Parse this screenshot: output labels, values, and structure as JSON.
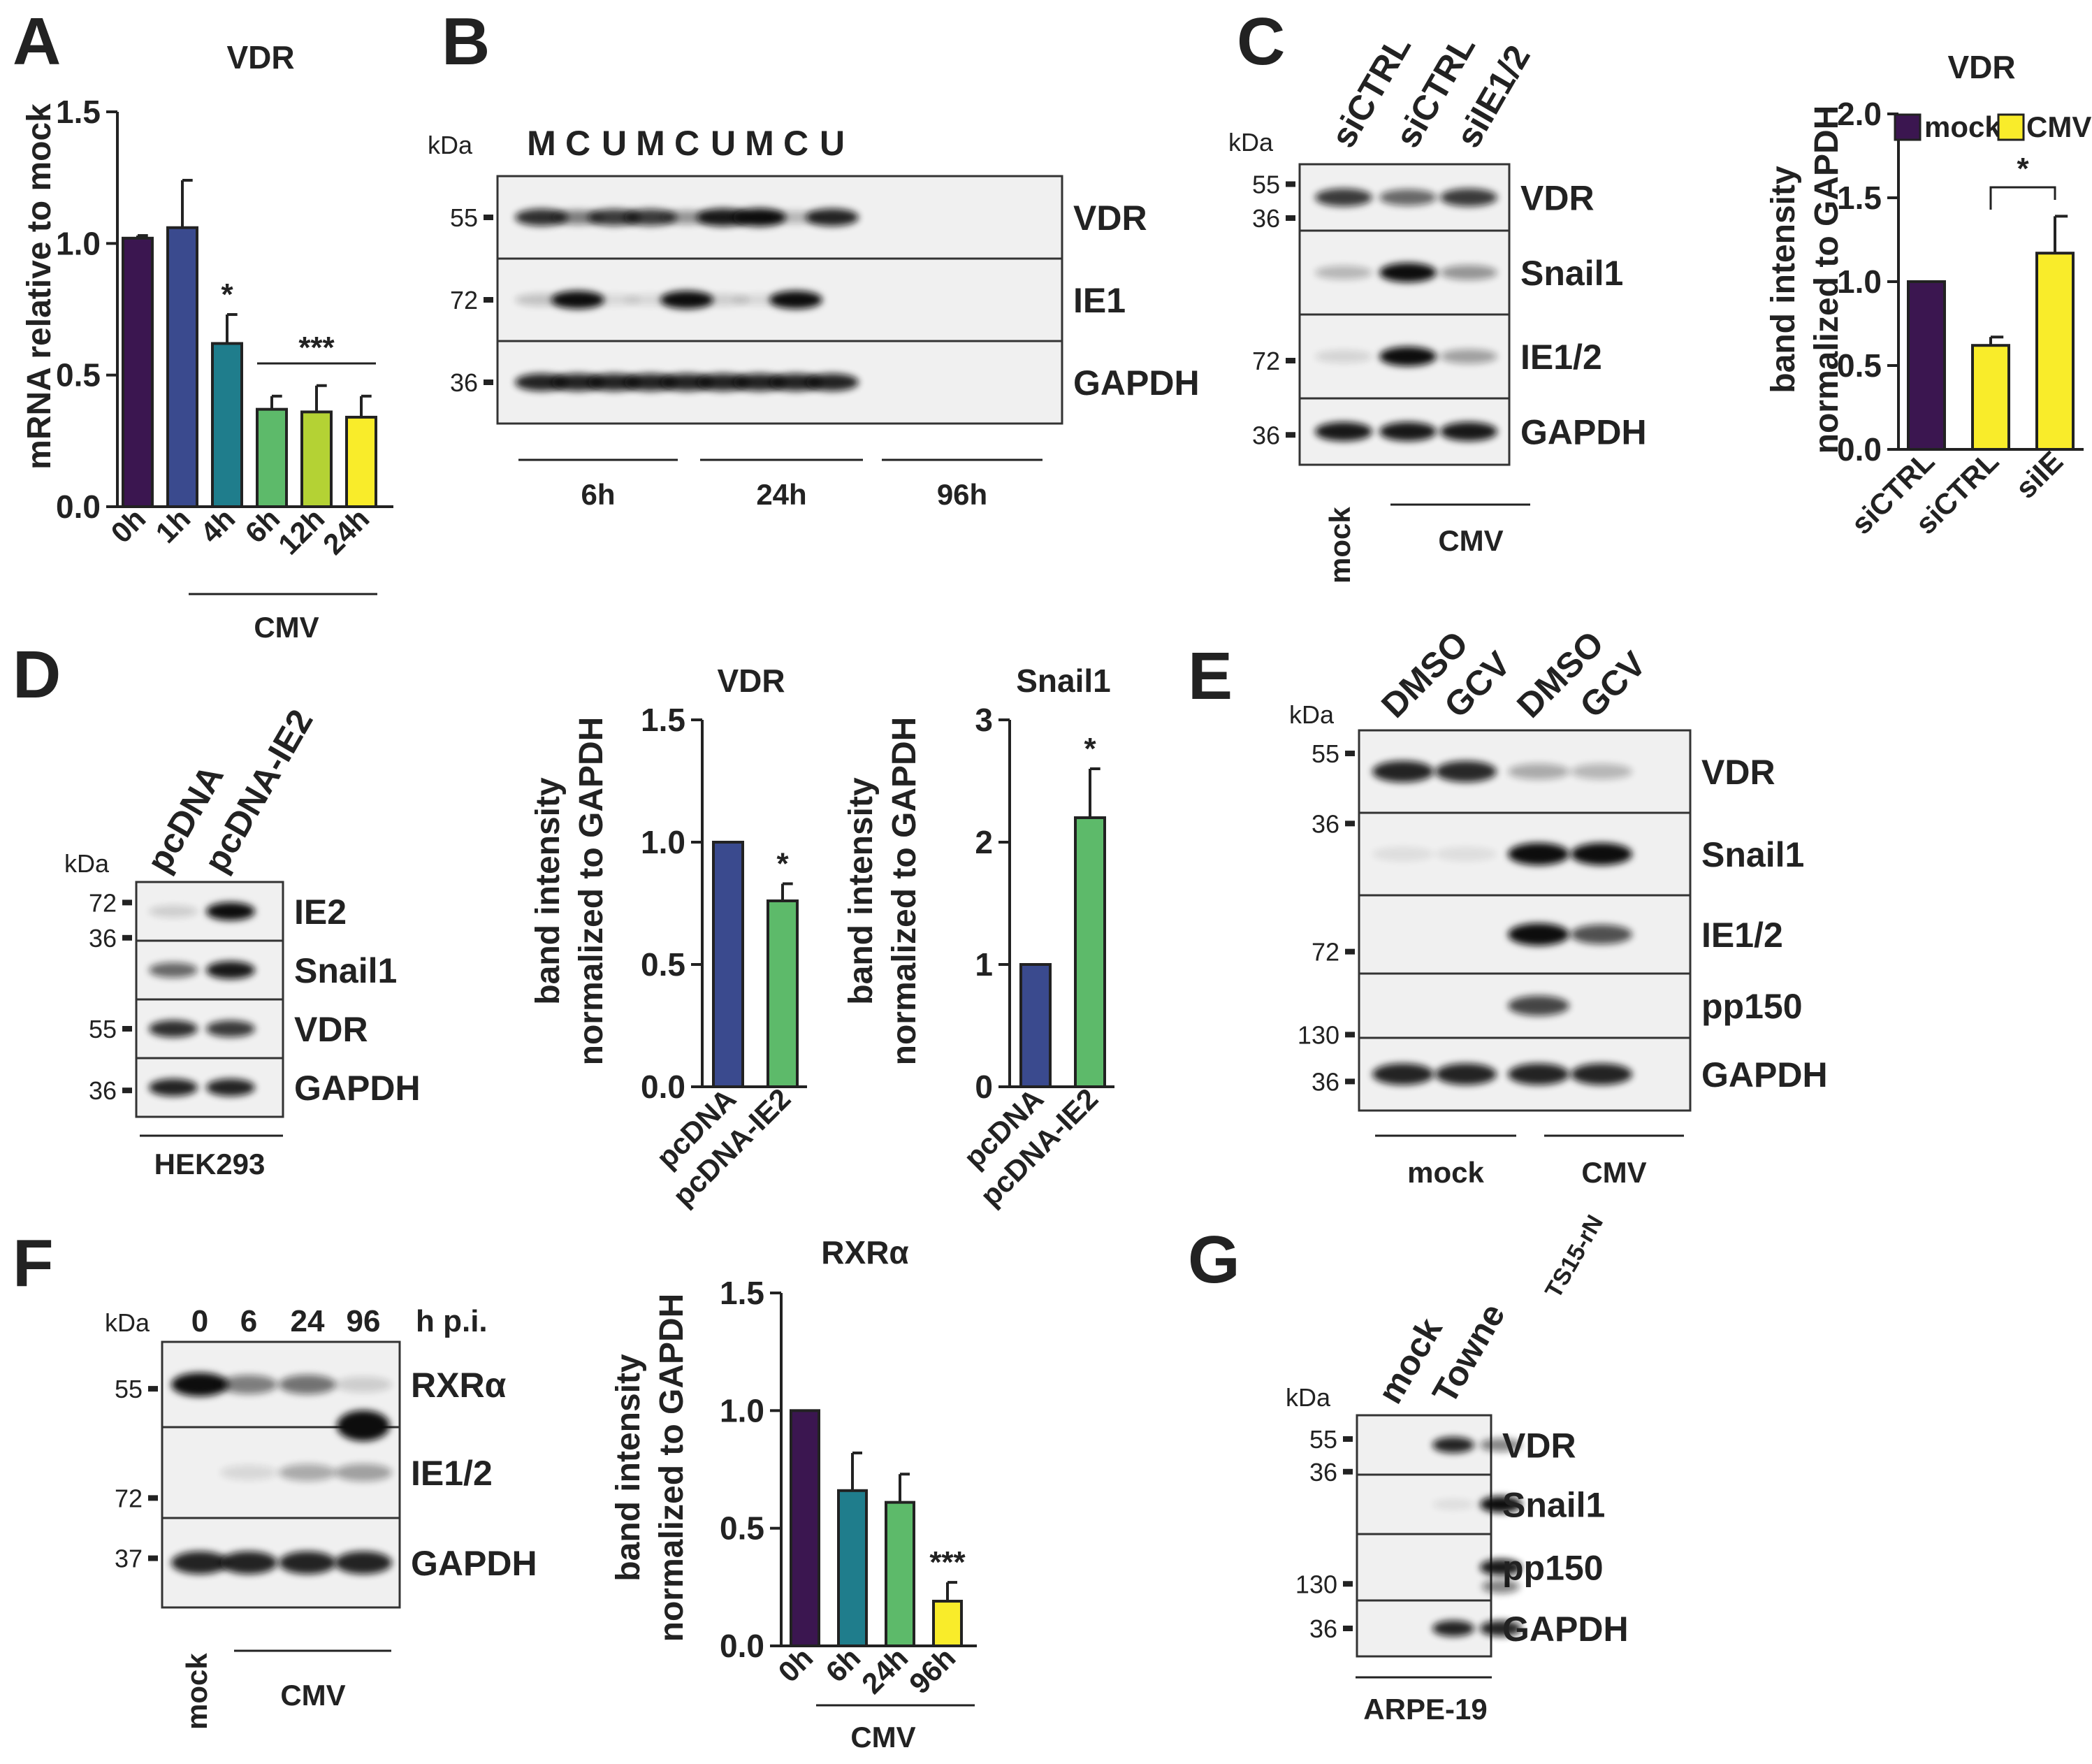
{
  "figure": {
    "panels": {
      "A": {
        "label": "A",
        "title": "VDR",
        "ylabel": "mRNA relative to mock",
        "group_label": "CMV",
        "significance": {
          "single": "*",
          "group": "***"
        }
      },
      "B": {
        "label": "B",
        "kda_label": "kDa",
        "lanes": [
          "M",
          "C",
          "U",
          "M",
          "C",
          "U",
          "M",
          "C",
          "U"
        ],
        "rows": [
          {
            "protein": "VDR",
            "kda": "55"
          },
          {
            "protein": "IE1",
            "kda": "72"
          },
          {
            "protein": "GAPDH",
            "kda": "36"
          }
        ],
        "groups": [
          "6h",
          "24h",
          "96h"
        ]
      },
      "C": {
        "label": "C",
        "kda_label": "kDa",
        "lanes": [
          "siCTRL",
          "siCTRL",
          "siIE1/2"
        ],
        "rows": [
          {
            "protein": "VDR",
            "kda": "55"
          },
          {
            "protein": "Snail1",
            "kda": "36"
          },
          {
            "protein": "IE1/2",
            "kda": "72"
          },
          {
            "protein": "GAPDH",
            "kda": "36"
          }
        ],
        "bottom_labels": {
          "mock": "mock",
          "cmv": "CMV"
        },
        "chart_title": "VDR",
        "ylabel_line1": "band intensity",
        "ylabel_line2": "normalized to GAPDH",
        "legend": [
          {
            "name": "mock",
            "color": "#3b1650"
          },
          {
            "name": "CMV",
            "color": "#f9ec2a"
          }
        ],
        "significance": "*"
      },
      "D": {
        "label": "D",
        "kda_label": "kDa",
        "lanes": [
          "pcDNA",
          "pcDNA-IE2"
        ],
        "rows": [
          {
            "protein": "IE2",
            "kda": "72"
          },
          {
            "protein": "Snail1",
            "kda": "36"
          },
          {
            "protein": "VDR",
            "kda": "55"
          },
          {
            "protein": "GAPDH",
            "kda": "36"
          }
        ],
        "cell_line": "HEK293",
        "ylabel_line1": "band intensity",
        "ylabel_line2": "normalized to GAPDH",
        "significance": "*"
      },
      "E": {
        "label": "E",
        "kda_label": "kDa",
        "lanes": [
          "DMSO",
          "GCV",
          "DMSO",
          "GCV"
        ],
        "rows": [
          {
            "protein": "VDR",
            "kda": "55"
          },
          {
            "protein": "Snail1",
            "kda": "36"
          },
          {
            "protein": "IE1/2",
            "kda": "72"
          },
          {
            "protein": "pp150",
            "kda": "130"
          },
          {
            "protein": "GAPDH",
            "kda": "36"
          }
        ],
        "groups": [
          "mock",
          "CMV"
        ]
      },
      "F": {
        "label": "F",
        "kda_label": "kDa",
        "timepoints": [
          "0",
          "6",
          "24",
          "96"
        ],
        "unit": "h p.i.",
        "rows": [
          {
            "protein": "RXRα",
            "kda": "55"
          },
          {
            "protein": "IE1/2",
            "kda": "72"
          },
          {
            "protein": "GAPDH",
            "kda": "37"
          }
        ],
        "bottom_labels": {
          "mock": "mock",
          "cmv": "CMV"
        },
        "ylabel_line1": "band intensity",
        "ylabel_line2": "normalized to GAPDH",
        "group_label": "CMV",
        "significance": "***"
      },
      "G": {
        "label": "G",
        "kda_label": "kDa",
        "lanes": [
          "mock",
          "Towne"
        ],
        "lane_sub": "TS15-rN",
        "rows": [
          {
            "protein": "VDR",
            "kda": "55"
          },
          {
            "protein": "Snail1",
            "kda": "36"
          },
          {
            "protein": "pp150",
            "kda": "130"
          },
          {
            "protein": "GAPDH",
            "kda": "36"
          }
        ],
        "cell_line": "ARPE-19"
      }
    }
  },
  "chart_data": [
    {
      "type": "bar",
      "panel": "A",
      "title": "VDR",
      "categories": [
        "0h",
        "1h",
        "4h",
        "6h",
        "12h",
        "24h"
      ],
      "values": [
        1.02,
        1.06,
        0.62,
        0.37,
        0.36,
        0.34
      ],
      "errors": [
        0.01,
        0.18,
        0.11,
        0.05,
        0.1,
        0.08
      ],
      "colors": [
        "#3b1650",
        "#3a4a8e",
        "#1f7d8c",
        "#5dba6a",
        "#b4d234",
        "#f9ec2a"
      ],
      "xlabel": "",
      "ylabel": "mRNA relative to mock",
      "ylim": [
        0,
        1.5
      ],
      "yticks": [
        "0.0",
        "0.5",
        "1.0",
        "1.5"
      ],
      "annotations": [
        {
          "text": "*",
          "category": "4h"
        },
        {
          "text": "***",
          "categories": [
            "6h",
            "24h"
          ]
        }
      ]
    },
    {
      "type": "bar",
      "panel": "C",
      "title": "VDR",
      "categories": [
        "siCTRL",
        "siCTRL",
        "siIE"
      ],
      "values": [
        1.0,
        0.62,
        1.17
      ],
      "errors": [
        0,
        0.05,
        0.22
      ],
      "colors": [
        "#3b1650",
        "#f9ec2a",
        "#f9ec2a"
      ],
      "ylabel": "band intensity normalized to GAPDH",
      "ylim": [
        0,
        2.0
      ],
      "yticks": [
        "0.0",
        "0.5",
        "1.0",
        "1.5",
        "2.0"
      ],
      "legend": [
        "mock",
        "CMV"
      ],
      "annotations": [
        {
          "text": "*",
          "categories": [
            "siCTRL",
            "siIE"
          ]
        }
      ]
    },
    {
      "type": "bar",
      "panel": "D",
      "title": "VDR",
      "categories": [
        "pcDNA",
        "pcDNA-IE2"
      ],
      "values": [
        1.0,
        0.76
      ],
      "errors": [
        0,
        0.07
      ],
      "colors": [
        "#3a4a8e",
        "#5dba6a"
      ],
      "ylabel": "band intensity normalized to GAPDH",
      "ylim": [
        0,
        1.5
      ],
      "yticks": [
        "0.0",
        "0.5",
        "1.0",
        "1.5"
      ],
      "annotations": [
        {
          "text": "*",
          "category": "pcDNA-IE2"
        }
      ]
    },
    {
      "type": "bar",
      "panel": "D",
      "title": "Snail1",
      "categories": [
        "pcDNA",
        "pcDNA-IE2"
      ],
      "values": [
        1.0,
        2.2
      ],
      "errors": [
        0,
        0.4
      ],
      "colors": [
        "#3a4a8e",
        "#5dba6a"
      ],
      "ylabel": "band intensity normalized to GAPDH",
      "ylim": [
        0,
        3
      ],
      "yticks": [
        "0",
        "1",
        "2",
        "3"
      ],
      "annotations": [
        {
          "text": "*",
          "category": "pcDNA-IE2"
        }
      ]
    },
    {
      "type": "bar",
      "panel": "F",
      "title": "RXRα",
      "categories": [
        "0h",
        "6h",
        "24h",
        "96h"
      ],
      "values": [
        1.0,
        0.66,
        0.61,
        0.19
      ],
      "errors": [
        0,
        0.16,
        0.12,
        0.08
      ],
      "colors": [
        "#3b1650",
        "#1f7d8c",
        "#5dba6a",
        "#f9ec2a"
      ],
      "ylabel": "band intensity normalized to GAPDH",
      "ylim": [
        0,
        1.5
      ],
      "yticks": [
        "0.0",
        "0.5",
        "1.0",
        "1.5"
      ],
      "annotations": [
        {
          "text": "***",
          "category": "96h"
        }
      ]
    }
  ]
}
